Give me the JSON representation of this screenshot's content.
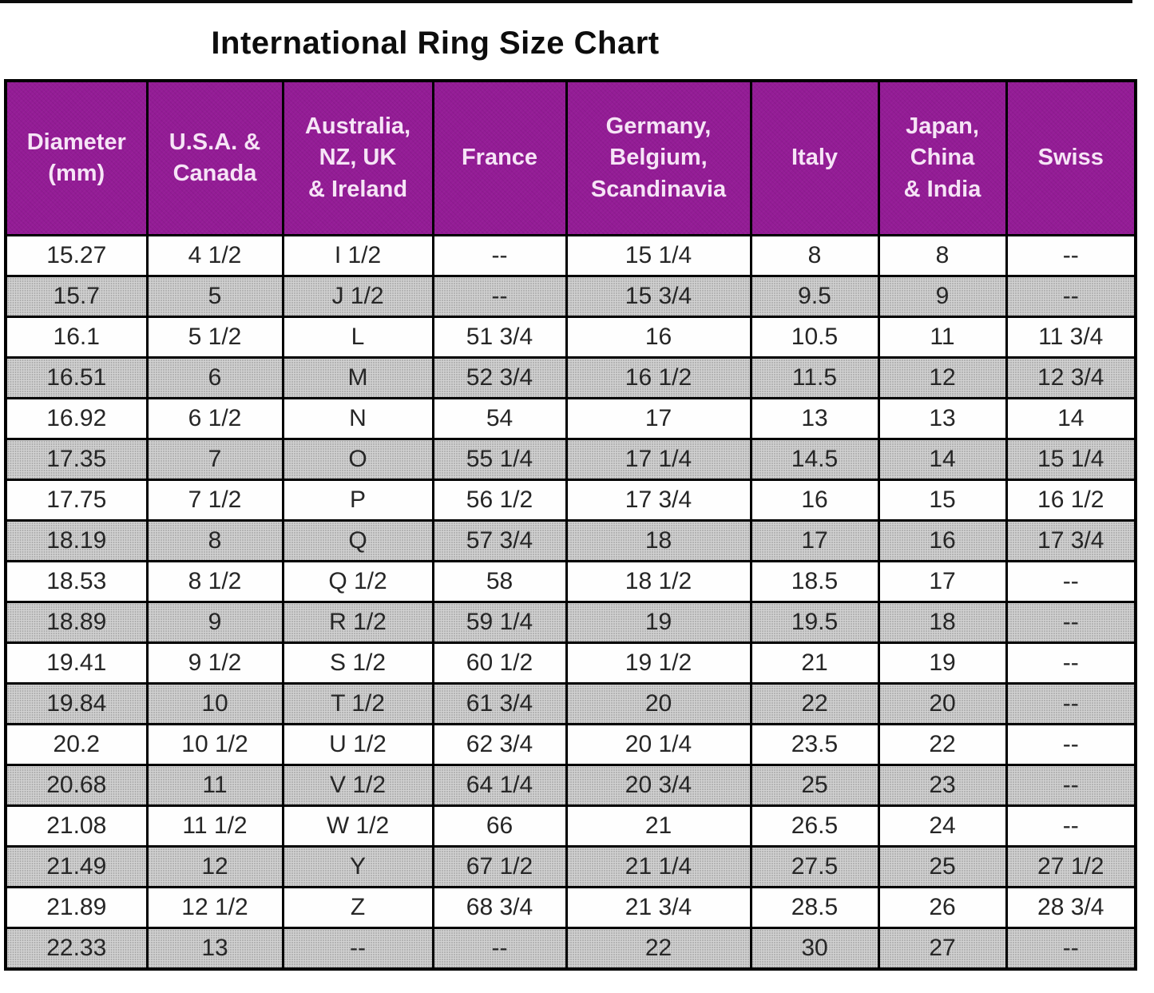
{
  "title": "International Ring Size Chart",
  "colors": {
    "header_bg": "#941c96",
    "header_text": "#f6e4f6",
    "alt_row_bg": "#d2d2d2",
    "border": "#000000",
    "title_text": "#0d0d0d"
  },
  "table": {
    "columns": [
      "Diameter\n(mm)",
      "U.S.A. &\nCanada",
      "Australia,\nNZ, UK\n& Ireland",
      "France",
      "Germany,\nBelgium,\nScandinavia",
      "Italy",
      "Japan,\nChina\n& India",
      "Swiss"
    ],
    "rows": [
      [
        "15.27",
        "4 1/2",
        "I 1/2",
        "--",
        "15 1/4",
        "8",
        "8",
        "--"
      ],
      [
        "15.7",
        "5",
        "J 1/2",
        "--",
        "15 3/4",
        "9.5",
        "9",
        "--"
      ],
      [
        "16.1",
        "5 1/2",
        "L",
        "51 3/4",
        "16",
        "10.5",
        "11",
        "11 3/4"
      ],
      [
        "16.51",
        "6",
        "M",
        "52 3/4",
        "16 1/2",
        "11.5",
        "12",
        "12 3/4"
      ],
      [
        "16.92",
        "6 1/2",
        "N",
        "54",
        "17",
        "13",
        "13",
        "14"
      ],
      [
        "17.35",
        "7",
        "O",
        "55 1/4",
        "17 1/4",
        "14.5",
        "14",
        "15 1/4"
      ],
      [
        "17.75",
        "7 1/2",
        "P",
        "56 1/2",
        "17 3/4",
        "16",
        "15",
        "16 1/2"
      ],
      [
        "18.19",
        "8",
        "Q",
        "57 3/4",
        "18",
        "17",
        "16",
        "17 3/4"
      ],
      [
        "18.53",
        "8 1/2",
        "Q 1/2",
        "58",
        "18 1/2",
        "18.5",
        "17",
        "--"
      ],
      [
        "18.89",
        "9",
        "R 1/2",
        "59 1/4",
        "19",
        "19.5",
        "18",
        "--"
      ],
      [
        "19.41",
        "9 1/2",
        "S 1/2",
        "60 1/2",
        "19 1/2",
        "21",
        "19",
        "--"
      ],
      [
        "19.84",
        "10",
        "T 1/2",
        "61 3/4",
        "20",
        "22",
        "20",
        "--"
      ],
      [
        "20.2",
        "10 1/2",
        "U 1/2",
        "62 3/4",
        "20 1/4",
        "23.5",
        "22",
        "--"
      ],
      [
        "20.68",
        "11",
        "V 1/2",
        "64 1/4",
        "20 3/4",
        "25",
        "23",
        "--"
      ],
      [
        "21.08",
        "11 1/2",
        "W 1/2",
        "66",
        "21",
        "26.5",
        "24",
        "--"
      ],
      [
        "21.49",
        "12",
        "Y",
        "67 1/2",
        "21 1/4",
        "27.5",
        "25",
        "27 1/2"
      ],
      [
        "21.89",
        "12 1/2",
        "Z",
        "68 3/4",
        "21 3/4",
        "28.5",
        "26",
        "28 3/4"
      ],
      [
        "22.33",
        "13",
        "--",
        "--",
        "22",
        "30",
        "27",
        "--"
      ]
    ]
  }
}
